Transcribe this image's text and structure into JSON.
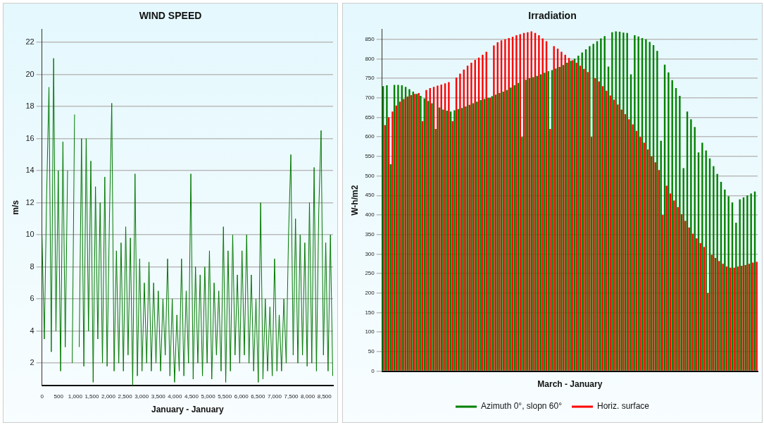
{
  "chart_data": [
    {
      "type": "line",
      "title": "WIND SPEED",
      "xlabel": "January - January",
      "ylabel": "m/s",
      "grid": "y",
      "legend": false,
      "marker": "none",
      "xlim": [
        0,
        8760
      ],
      "ylim": [
        0.6,
        22.8
      ],
      "xticks": [
        0,
        500,
        {
          "value": 1000,
          "label": "1,000"
        },
        {
          "value": 1500,
          "label": "1,500"
        },
        {
          "value": 2000,
          "label": "2,000"
        },
        {
          "value": 2500,
          "label": "2,500"
        },
        {
          "value": 3000,
          "label": "3,000"
        },
        {
          "value": 3500,
          "label": "3,500"
        },
        {
          "value": 4000,
          "label": "4,000"
        },
        {
          "value": 4500,
          "label": "4,500"
        },
        {
          "value": 5000,
          "label": "5,000"
        },
        {
          "value": 5500,
          "label": "5,500"
        },
        {
          "value": 6000,
          "label": "6,000"
        },
        {
          "value": 6500,
          "label": "6,500"
        },
        {
          "value": 7000,
          "label": "7,000"
        },
        {
          "value": 7500,
          "label": "7,500"
        },
        {
          "value": 8000,
          "label": "8,000"
        },
        {
          "value": 8500,
          "label": "8,500"
        }
      ],
      "yticks": [
        2,
        4,
        6,
        8,
        10,
        12,
        14,
        16,
        18,
        20,
        22
      ],
      "x": [
        0,
        70,
        140,
        210,
        280,
        350,
        420,
        490,
        560,
        630,
        700,
        770,
        840,
        910,
        980,
        1050,
        1120,
        1190,
        1260,
        1330,
        1400,
        1470,
        1540,
        1610,
        1680,
        1750,
        1820,
        1890,
        1960,
        2030,
        2100,
        2170,
        2240,
        2310,
        2380,
        2450,
        2520,
        2590,
        2660,
        2730,
        2800,
        2870,
        2940,
        3010,
        3080,
        3150,
        3220,
        3290,
        3360,
        3430,
        3500,
        3570,
        3640,
        3710,
        3780,
        3850,
        3920,
        3990,
        4060,
        4130,
        4200,
        4270,
        4340,
        4410,
        4480,
        4550,
        4620,
        4690,
        4760,
        4830,
        4900,
        4970,
        5040,
        5110,
        5180,
        5250,
        5320,
        5390,
        5460,
        5530,
        5600,
        5670,
        5740,
        5810,
        5880,
        5950,
        6020,
        6090,
        6160,
        6230,
        6300,
        6370,
        6440,
        6510,
        6580,
        6650,
        6720,
        6790,
        6860,
        6930,
        7000,
        7070,
        7140,
        7210,
        7280,
        7350,
        7420,
        7490,
        7560,
        7630,
        7700,
        7770,
        7840,
        7910,
        7980,
        8050,
        8120,
        8190,
        8260,
        8330,
        8400,
        8470,
        8540,
        8610,
        8680,
        8750
      ],
      "series": [
        {
          "color": "#007800",
          "values": [
            10,
            3.5,
            12.5,
            19.2,
            2.7,
            21,
            4,
            14,
            1.5,
            15.8,
            3,
            14,
            null,
            2,
            17.5,
            null,
            3,
            16,
            1.8,
            16,
            4,
            14.6,
            0.8,
            13,
            3.5,
            12,
            2,
            13.6,
            1.8,
            11,
            18.2,
            1.5,
            9,
            2,
            9.5,
            1.5,
            10.5,
            2.5,
            9.8,
            0.6,
            13.8,
            1.2,
            8.5,
            1.5,
            7,
            2,
            8.3,
            1.5,
            7,
            2,
            6.5,
            1.5,
            6,
            2.5,
            8.5,
            1.2,
            6,
            0.8,
            5,
            1.5,
            8.5,
            1.2,
            6.5,
            2,
            13.8,
            1,
            8,
            2,
            7.5,
            1.2,
            8,
            2,
            9,
            1,
            7,
            2.5,
            6.5,
            1.5,
            10.5,
            0.8,
            9,
            1.5,
            10,
            2.5,
            7.5,
            2,
            9,
            2.5,
            10,
            2,
            7.5,
            1.5,
            6,
            0.8,
            12,
            1,
            6,
            1.5,
            5.5,
            1.2,
            8.5,
            1.5,
            5,
            1.5,
            6,
            2,
            10,
            15,
            2.5,
            11,
            2,
            10,
            2.5,
            9.5,
            1.8,
            12,
            2,
            14.2,
            1.5,
            11.5,
            16.5,
            2.5,
            9.5,
            1.5,
            10,
            1.2
          ]
        }
      ]
    },
    {
      "type": "bar",
      "title": "Irradiation",
      "xlabel": "March - January",
      "ylabel": "W-h/m2",
      "grid": "y",
      "legend": "bottom",
      "tick_labels": "y",
      "ylim": [
        0,
        875
      ],
      "yticks": [
        0,
        50,
        100,
        150,
        200,
        250,
        300,
        350,
        400,
        450,
        500,
        550,
        600,
        650,
        700,
        750,
        800,
        850
      ],
      "categories": [
        null,
        null,
        null,
        null,
        null,
        null,
        null,
        null,
        null,
        null,
        null,
        null,
        null,
        null,
        null,
        null,
        null,
        null,
        null,
        null,
        null,
        null,
        null,
        null,
        null,
        null,
        null,
        null,
        null,
        null,
        null,
        null,
        null,
        null,
        null,
        null,
        null,
        null,
        null,
        null,
        null,
        null,
        null,
        null,
        null,
        null,
        null,
        null,
        null,
        null,
        null,
        null,
        null,
        null,
        null,
        null,
        null,
        null,
        null,
        null,
        null,
        null,
        null,
        null,
        null,
        null,
        null,
        null,
        null,
        null,
        null,
        null,
        null,
        null,
        null,
        null,
        null,
        null,
        null,
        null,
        null,
        null,
        null,
        null,
        null,
        null,
        null,
        null,
        null,
        null,
        null,
        null,
        null,
        null,
        null,
        null,
        null,
        null,
        null,
        null
      ],
      "series": [
        {
          "name": "Azimuth 0°, slopn 60°",
          "color": "#008000",
          "values": [
            730,
            732,
            530,
            733,
            733,
            732,
            728,
            722,
            716,
            710,
            705,
            698,
            692,
            686,
            620,
            675,
            670,
            667,
            665,
            668,
            671,
            674,
            678,
            682,
            686,
            690,
            694,
            697,
            700,
            704,
            708,
            712,
            716,
            720,
            726,
            732,
            738,
            600,
            746,
            750,
            753,
            756,
            760,
            764,
            768,
            771,
            775,
            779,
            784,
            790,
            795,
            800,
            808,
            816,
            824,
            832,
            838,
            845,
            852,
            858,
            780,
            868,
            870,
            869,
            867,
            866,
            760,
            860,
            857,
            853,
            850,
            843,
            835,
            820,
            590,
            785,
            765,
            745,
            725,
            705,
            520,
            665,
            645,
            625,
            560,
            585,
            565,
            545,
            525,
            505,
            485,
            465,
            448,
            432,
            380,
            440,
            445,
            450,
            455,
            460
          ]
        },
        {
          "name": "Horiz. surface",
          "color": "#ff0000",
          "values": [
            630,
            650,
            665,
            680,
            690,
            697,
            703,
            707,
            710,
            712,
            640,
            720,
            725,
            728,
            731,
            734,
            737,
            740,
            640,
            752,
            762,
            772,
            782,
            790,
            797,
            803,
            810,
            818,
            700,
            834,
            842,
            847,
            850,
            853,
            856,
            860,
            863,
            866,
            868,
            870,
            866,
            860,
            852,
            845,
            620,
            832,
            826,
            818,
            810,
            802,
            796,
            790,
            782,
            774,
            766,
            600,
            750,
            742,
            730,
            718,
            706,
            695,
            683,
            670,
            658,
            645,
            632,
            615,
            600,
            585,
            568,
            550,
            535,
            515,
            400,
            475,
            455,
            437,
            420,
            402,
            385,
            368,
            352,
            340,
            328,
            318,
            200,
            298,
            290,
            282,
            275,
            268,
            265,
            265,
            268,
            270,
            272,
            275,
            278,
            280
          ]
        }
      ]
    }
  ]
}
